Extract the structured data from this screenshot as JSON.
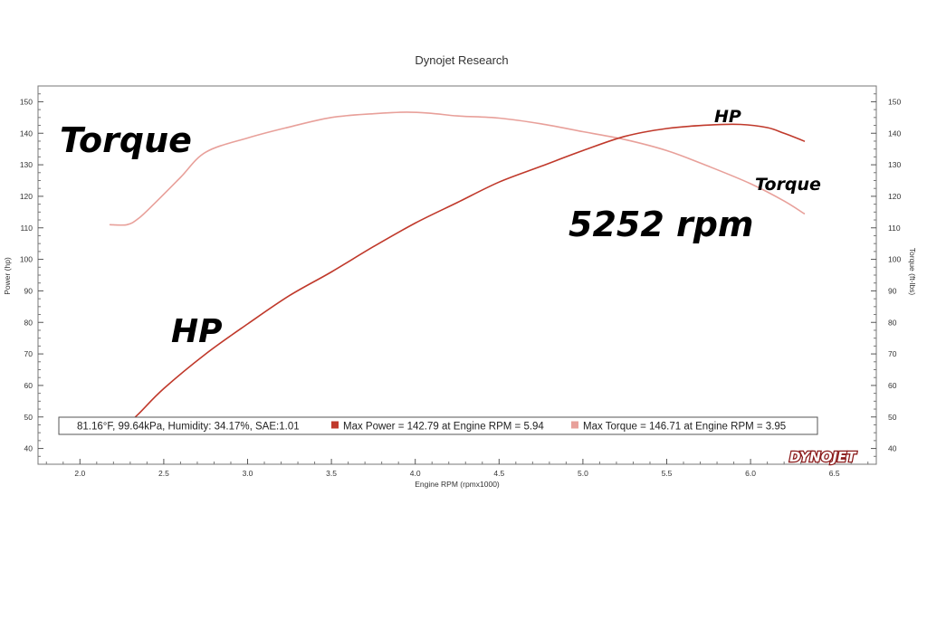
{
  "chart_data": {
    "type": "line",
    "title": "Dynojet Research",
    "xlabel": "Engine RPM (rpmx1000)",
    "ylabel_left": "Power (hp)",
    "ylabel_right": "Torque (ft-lbs)",
    "xlim": [
      1.75,
      6.75
    ],
    "ylim": [
      35,
      155
    ],
    "x_ticks": [
      "2.0",
      "2.5",
      "3.0",
      "3.5",
      "4.0",
      "4.5",
      "5.0",
      "5.5",
      "6.0",
      "6.5"
    ],
    "y_ticks": [
      "40",
      "50",
      "60",
      "70",
      "80",
      "90",
      "100",
      "110",
      "120",
      "130",
      "140",
      "150"
    ],
    "grid": false,
    "series": [
      {
        "name": "Max Power",
        "color": "#c0392b",
        "x": [
          2.25,
          2.35,
          2.5,
          2.75,
          3.0,
          3.25,
          3.5,
          3.75,
          4.0,
          4.25,
          4.5,
          4.75,
          5.0,
          5.25,
          5.5,
          5.75,
          5.94,
          6.1,
          6.2,
          6.32
        ],
        "values": [
          46,
          51,
          59,
          70,
          79.5,
          88.5,
          96,
          104,
          111.5,
          118,
          124.5,
          129.5,
          134.5,
          139,
          141.5,
          142.6,
          142.8,
          141.8,
          140,
          137.5
        ]
      },
      {
        "name": "Max Torque",
        "color": "#e8a09a",
        "x": [
          2.18,
          2.28,
          2.35,
          2.45,
          2.6,
          2.75,
          3.0,
          3.25,
          3.5,
          3.75,
          3.95,
          4.1,
          4.25,
          4.5,
          4.75,
          5.0,
          5.25,
          5.5,
          5.75,
          6.0,
          6.2,
          6.32
        ],
        "values": [
          111,
          111,
          113,
          118,
          126,
          134,
          138.5,
          142,
          145,
          146.2,
          146.7,
          146.3,
          145.5,
          144.8,
          143,
          140.5,
          138,
          134.5,
          129.5,
          124,
          118.5,
          114.5
        ]
      }
    ],
    "annotations": {
      "torque_label": "Torque",
      "hp_label": "HP",
      "hp_label_small": "HP",
      "torque_label_small": "Torque",
      "rpm_note": "5252 rpm"
    },
    "legend": {
      "conditions": "81.16°F, 99.64kPa, Humidity: 34.17%, SAE:1.01",
      "power_entry": "Max Power = 142.79 at Engine RPM = 5.94",
      "torque_entry": "Max Torque = 146.71 at Engine RPM = 3.95",
      "placement": "bottom"
    },
    "logo": "DYNOJET"
  }
}
